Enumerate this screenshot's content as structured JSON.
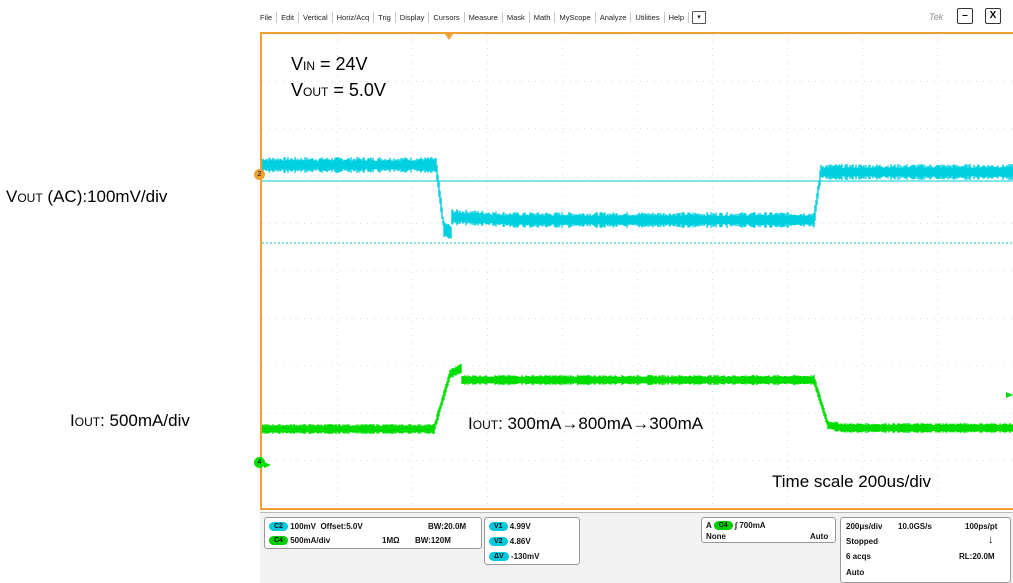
{
  "menu": {
    "items": [
      "File",
      "Edit",
      "Vertical",
      "Horiz/Acq",
      "Trig",
      "Display",
      "Cursors",
      "Measure",
      "Mask",
      "Math",
      "MyScope",
      "Analyze",
      "Utilities",
      "Help"
    ],
    "dropdown_glyph": "▾",
    "brand": "Tek",
    "minimize": "–",
    "close": "X"
  },
  "screen": {
    "ch2_marker": "2",
    "ch4_marker": "4",
    "colors": {
      "ch2": "#00d0e0",
      "ch4": "#00dd00",
      "border": "#f0a030",
      "grid": "#c0c0c0"
    }
  },
  "annotations": {
    "vin": {
      "main": "V",
      "sub": "IN",
      "rest": " = 24V"
    },
    "vout": {
      "main": "V",
      "sub": "OUT",
      "rest": " =  5.0V"
    },
    "vout_ac": {
      "main": "V",
      "sub": "OUT",
      "rest": " (AC):100mV/div"
    },
    "iout_scale": {
      "main": "I",
      "sub": "OUT",
      "rest": ": 500mA/div"
    },
    "iout_step": {
      "main": "I",
      "sub": "OUT",
      "rest": ": 300mA→800mA→300mA"
    },
    "time_scale": "Time  scale  200us/div"
  },
  "status": {
    "c2": {
      "badge": "C2",
      "scale": "100mV",
      "offset": "Offset:5.0V",
      "bw": "BW:20.0M"
    },
    "c4": {
      "badge": "C4",
      "scale": "500mA/div",
      "impedance": "1MΩ",
      "bw": "BW:120M"
    },
    "cursors": [
      {
        "badge": "V1",
        "value": "4.99V"
      },
      {
        "badge": "V2",
        "value": "4.86V"
      },
      {
        "badge": "ΔV",
        "value": "-130mV"
      }
    ],
    "trigger": {
      "label": "A",
      "badge": "C4",
      "level": "700mA",
      "coupling": "None",
      "mode": "Auto"
    },
    "horizontal": {
      "timebase": "200μs/div",
      "sample_rate": "10.0GS/s",
      "resolution": "100ps/pt",
      "state": "Stopped",
      "acqs": "6 acqs",
      "record_length": "RL:20.0M",
      "mode": "Auto"
    }
  }
}
